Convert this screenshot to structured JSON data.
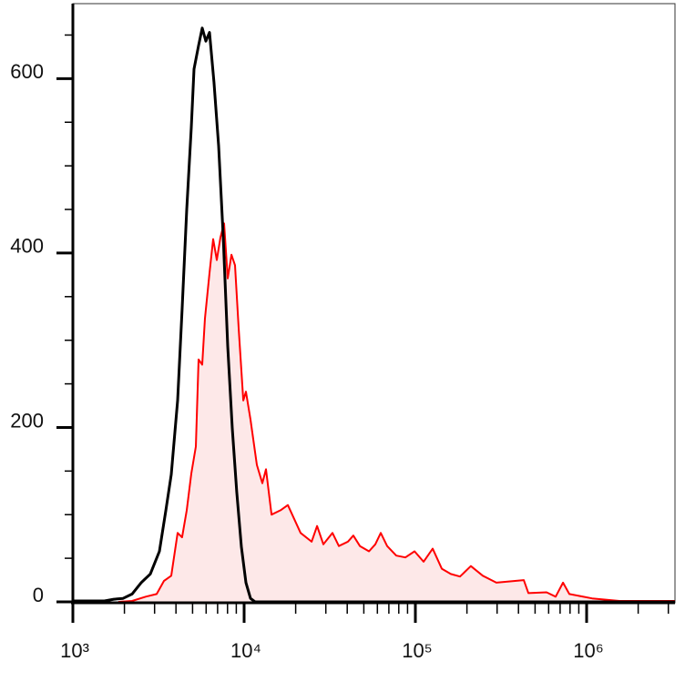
{
  "chart_data": {
    "type": "histogram-line",
    "xlog": true,
    "xlim": [
      1000,
      3280000
    ],
    "ylim": [
      0,
      686
    ],
    "xticks": [
      {
        "value": 1000,
        "label": "10³"
      },
      {
        "value": 10000,
        "label": "10⁴"
      },
      {
        "value": 100000,
        "label": "10⁵"
      },
      {
        "value": 1000000,
        "label": "10⁶"
      }
    ],
    "xminor": [
      2000,
      3000,
      4000,
      5000,
      6000,
      7000,
      8000,
      9000,
      20000,
      30000,
      40000,
      50000,
      60000,
      70000,
      80000,
      90000,
      200000,
      300000,
      400000,
      500000,
      600000,
      700000,
      800000,
      900000,
      2000000,
      3000000
    ],
    "yticks": [
      0,
      200,
      400,
      600
    ],
    "yminor": [
      50,
      100,
      150,
      250,
      300,
      350,
      450,
      500,
      550,
      650
    ],
    "series": [
      {
        "color": "#ff0000",
        "fill": "#fde8e8",
        "x": [
          1845,
          2217,
          2664,
          3085,
          3404,
          3753,
          4090,
          4345,
          4623,
          4913,
          5225,
          5420,
          5689,
          5906,
          6280,
          6592,
          6922,
          7275,
          7638,
          8020,
          8433,
          8850,
          9290,
          9886,
          10250,
          10890,
          11870,
          12770,
          13420,
          14450,
          16330,
          17990,
          21370,
          24770,
          26660,
          29040,
          32820,
          35730,
          40370,
          43450,
          47400,
          53580,
          58340,
          62810,
          68390,
          77270,
          87340,
          98850,
          111700,
          126200,
          142600,
          161100,
          182300,
          210900,
          247500,
          297200,
          429500,
          457100,
          583400,
          659200,
          727800,
          792500,
          1076000,
          1553000,
          3280000
        ],
        "values": [
          0,
          1,
          6,
          9,
          24,
          30,
          79,
          74,
          105,
          147,
          178,
          278,
          272,
          325,
          377,
          416,
          392,
          418,
          434,
          371,
          398,
          386,
          314,
          231,
          241,
          209,
          157,
          136,
          152,
          100,
          105,
          111,
          79,
          69,
          87,
          66,
          79,
          64,
          69,
          76,
          64,
          58,
          66,
          79,
          64,
          53,
          51,
          58,
          46,
          61,
          38,
          32,
          29,
          41,
          30,
          22,
          25,
          10,
          11,
          6,
          22,
          9,
          4,
          1,
          1
        ]
      },
      {
        "color": "#000000",
        "x": [
          1000,
          1530,
          1735,
          1963,
          2217,
          2506,
          2832,
          3200,
          3490,
          3753,
          4090,
          4345,
          4623,
          4913,
          5096,
          5420,
          5689,
          5980,
          6280,
          6670,
          7096,
          7550,
          8020,
          8530,
          9060,
          9640,
          10250,
          10890,
          11580,
          14800,
          3280000
        ],
        "values": [
          1,
          1,
          3,
          4,
          9,
          22,
          32,
          58,
          105,
          146,
          231,
          335,
          450,
          544,
          611,
          638,
          658,
          643,
          653,
          596,
          523,
          418,
          293,
          199,
          126,
          63,
          22,
          4,
          0,
          0,
          0
        ]
      }
    ]
  }
}
